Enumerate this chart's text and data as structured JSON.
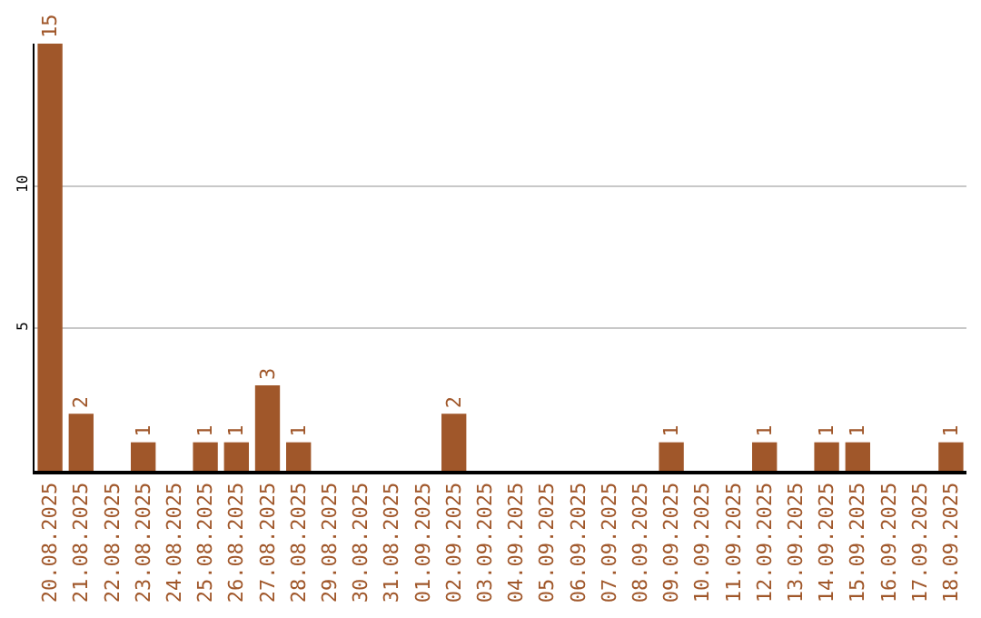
{
  "chart_data": {
    "type": "bar",
    "categories": [
      "20.08.2025",
      "21.08.2025",
      "22.08.2025",
      "23.08.2025",
      "24.08.2025",
      "25.08.2025",
      "26.08.2025",
      "27.08.2025",
      "28.08.2025",
      "29.08.2025",
      "30.08.2025",
      "31.08.2025",
      "01.09.2025",
      "02.09.2025",
      "03.09.2025",
      "04.09.2025",
      "05.09.2025",
      "06.09.2025",
      "07.09.2025",
      "08.09.2025",
      "09.09.2025",
      "10.09.2025",
      "11.09.2025",
      "12.09.2025",
      "13.09.2025",
      "14.09.2025",
      "15.09.2025",
      "16.09.2025",
      "17.09.2025",
      "18.09.2025"
    ],
    "values": [
      15,
      2,
      0,
      1,
      0,
      1,
      1,
      3,
      1,
      0,
      0,
      0,
      0,
      2,
      0,
      0,
      0,
      0,
      0,
      0,
      1,
      0,
      0,
      1,
      0,
      1,
      1,
      0,
      0,
      1
    ],
    "value_labels": [
      "15",
      "2",
      null,
      "1",
      null,
      "1",
      "1",
      "3",
      "1",
      null,
      null,
      null,
      null,
      "2",
      null,
      null,
      null,
      null,
      null,
      null,
      "1",
      null,
      null,
      "1",
      null,
      "1",
      "1",
      null,
      null,
      "1"
    ],
    "color": "#a0572a",
    "ylim": [
      0,
      15
    ],
    "yticks": [
      5,
      10
    ],
    "grid": "y"
  }
}
